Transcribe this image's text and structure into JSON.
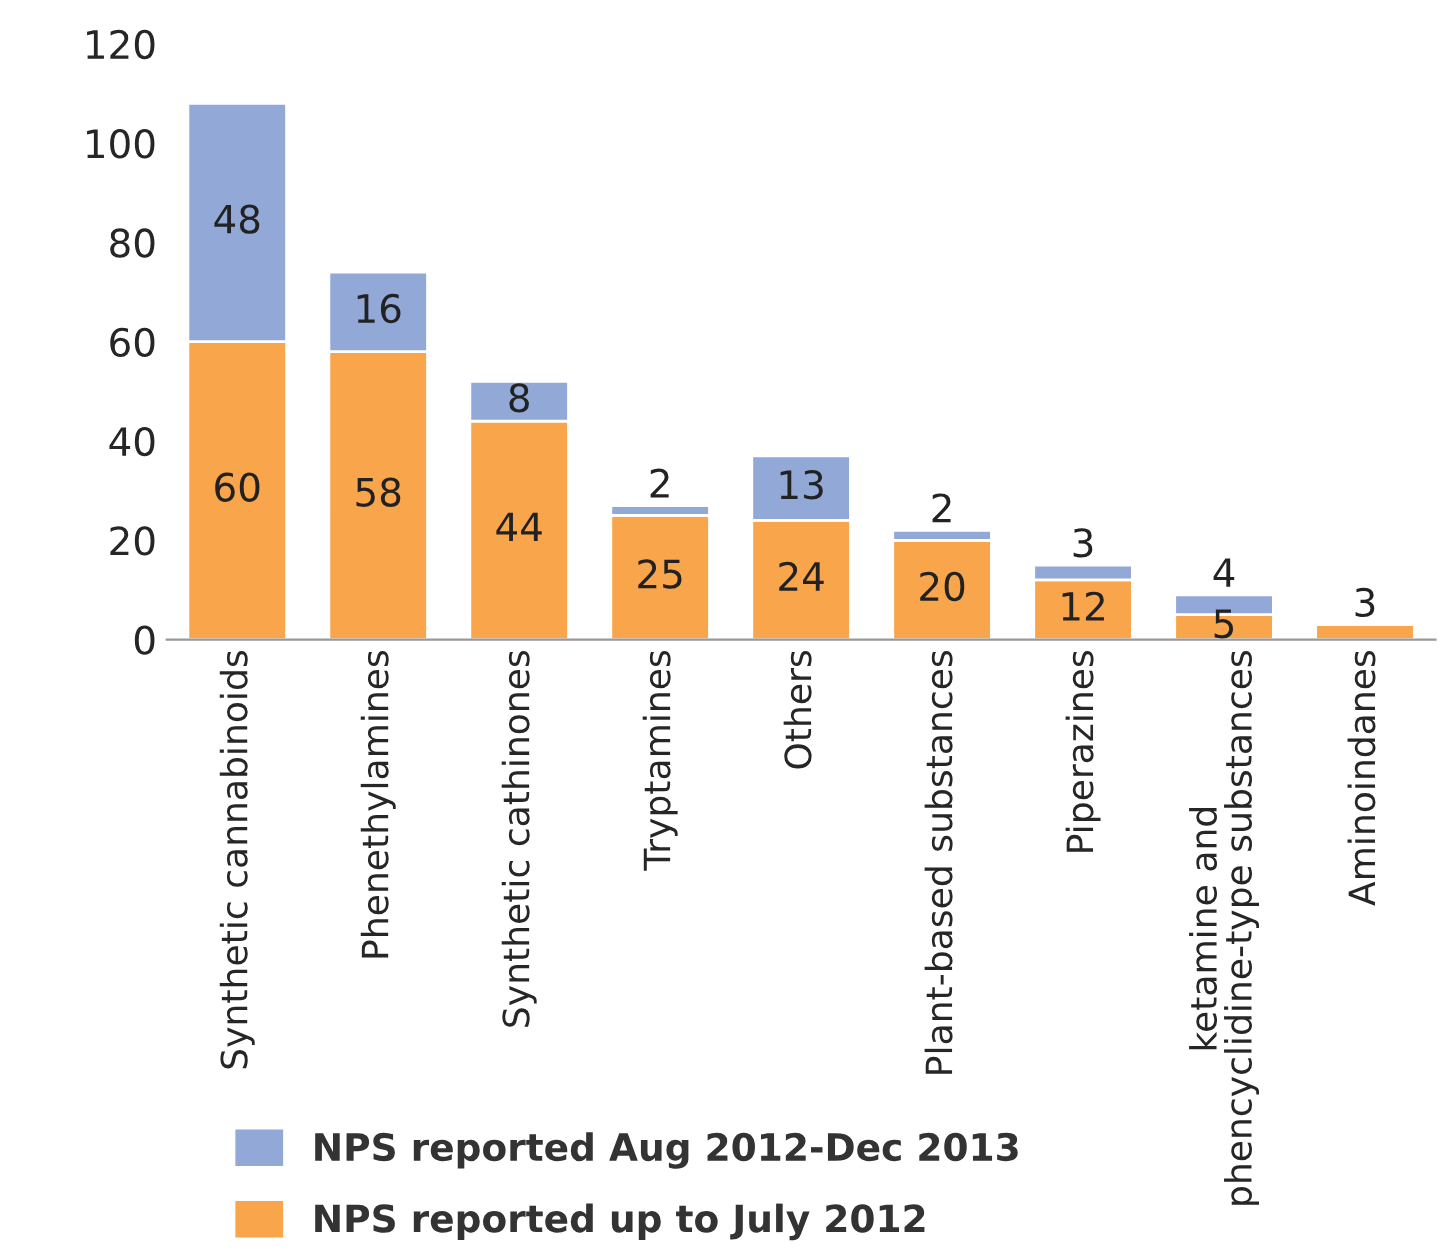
{
  "chart_data": {
    "type": "bar",
    "stacked": true,
    "categories": [
      "Synthetic cannabinoids",
      "Phenethylamines",
      "Synthetic cathinones",
      "Tryptamines",
      "Others",
      "Plant-based substances",
      "Piperazines",
      "ketamine and phencyclidine-type substances",
      "Aminoindanes"
    ],
    "series": [
      {
        "name": "NPS reported up to July 2012",
        "color": "#f9a54b",
        "values": [
          60,
          58,
          44,
          25,
          24,
          20,
          12,
          5,
          3
        ]
      },
      {
        "name": "NPS reported Aug 2012-Dec 2013",
        "color": "#92a9d8",
        "values": [
          48,
          16,
          8,
          2,
          13,
          2,
          3,
          4,
          null
        ]
      }
    ],
    "ylim": [
      0,
      120
    ],
    "yticks": [
      0,
      20,
      40,
      60,
      80,
      100,
      120
    ],
    "data_labels": true,
    "legend": "bottom",
    "grid": false
  }
}
